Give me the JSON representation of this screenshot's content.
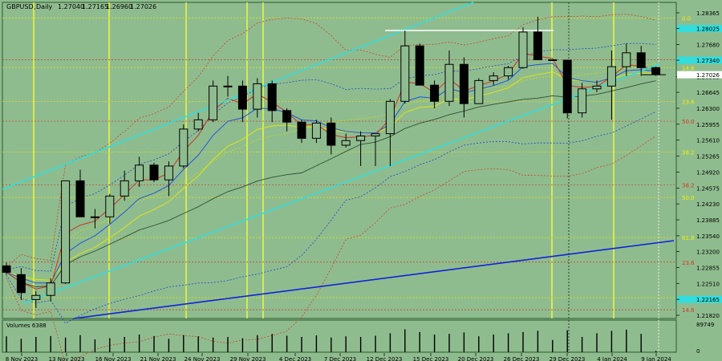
{
  "chart_data": {
    "type": "candlestick",
    "header": {
      "symbol": "GBPUSD",
      "timeframe": "Daily",
      "ohlc": [
        "1.27040",
        "1.27165",
        "1.26960",
        "1.27026"
      ]
    },
    "current_price": "1.27026",
    "volume_label": "Volumes 6388",
    "volume_axis": [
      "89749",
      "0"
    ],
    "y_ticks": [
      "1.28365",
      "1.28025",
      "1.27680",
      "1.27340",
      "1.26985",
      "1.26645",
      "1.26300",
      "1.25955",
      "1.25610",
      "1.25265",
      "1.24920",
      "1.24575",
      "1.24230",
      "1.23885",
      "1.23540",
      "1.23200",
      "1.22855",
      "1.22510",
      "1.22165",
      "1.21820"
    ],
    "highlighted_ticks": [
      "1.28025",
      "1.27340",
      "1.22165"
    ],
    "x_labels": [
      "8 Nov 2023",
      "13 Nov 2023",
      "16 Nov 2023",
      "21 Nov 2023",
      "24 Nov 2023",
      "29 Nov 2023",
      "4 Dec 2023",
      "7 Dec 2023",
      "12 Dec 2023",
      "15 Dec 2023",
      "20 Dec 2023",
      "26 Dec 2023",
      "29 Dec 2023",
      "4 Jan 2024",
      "9 Jan 2024"
    ],
    "fib_labels": [
      {
        "text": "0.0",
        "price": 1.2825,
        "color": "yellow"
      },
      {
        "text": "61.8",
        "price": 1.2735,
        "color": "red"
      },
      {
        "text": "14.6",
        "price": 1.2718,
        "color": "yellow"
      },
      {
        "text": "23.6",
        "price": 1.2645,
        "color": "yellow"
      },
      {
        "text": "50.0",
        "price": 1.2602,
        "color": "red"
      },
      {
        "text": "38.2",
        "price": 1.2535,
        "color": "yellow"
      },
      {
        "text": "38.2",
        "price": 1.2464,
        "color": "red"
      },
      {
        "text": "50.0",
        "price": 1.2437,
        "color": "yellow"
      },
      {
        "text": "61.8",
        "price": 1.235,
        "color": "yellow"
      },
      {
        "text": "23.6",
        "price": 1.2297,
        "color": "red"
      },
      {
        "text": "76.4",
        "price": 1.222,
        "color": "yellow"
      },
      {
        "text": "14.6",
        "price": 1.2194,
        "color": "red"
      }
    ],
    "ylim": [
      1.2165,
      1.2848
    ],
    "candles": [
      {
        "o": 1.2289,
        "h": 1.2296,
        "l": 1.227,
        "c": 1.2275
      },
      {
        "o": 1.227,
        "h": 1.2284,
        "l": 1.2215,
        "c": 1.2231
      },
      {
        "o": 1.2216,
        "h": 1.2234,
        "l": 1.2198,
        "c": 1.2225
      },
      {
        "o": 1.2225,
        "h": 1.2262,
        "l": 1.2212,
        "c": 1.2252
      },
      {
        "o": 1.2252,
        "h": 1.2473,
        "l": 1.225,
        "c": 1.2473
      },
      {
        "o": 1.2473,
        "h": 1.2497,
        "l": 1.2395,
        "c": 1.2395
      },
      {
        "o": 1.2395,
        "h": 1.2412,
        "l": 1.237,
        "c": 1.2395
      },
      {
        "o": 1.2395,
        "h": 1.2445,
        "l": 1.238,
        "c": 1.244
      },
      {
        "o": 1.244,
        "h": 1.2495,
        "l": 1.243,
        "c": 1.2473
      },
      {
        "o": 1.2473,
        "h": 1.2525,
        "l": 1.246,
        "c": 1.2507
      },
      {
        "o": 1.2507,
        "h": 1.2512,
        "l": 1.247,
        "c": 1.2475
      },
      {
        "o": 1.2475,
        "h": 1.2515,
        "l": 1.244,
        "c": 1.2505
      },
      {
        "o": 1.2505,
        "h": 1.2595,
        "l": 1.25,
        "c": 1.2585
      },
      {
        "o": 1.2585,
        "h": 1.262,
        "l": 1.258,
        "c": 1.2605
      },
      {
        "o": 1.2605,
        "h": 1.269,
        "l": 1.26,
        "c": 1.2678
      },
      {
        "o": 1.2678,
        "h": 1.27,
        "l": 1.2655,
        "c": 1.2678
      },
      {
        "o": 1.2678,
        "h": 1.269,
        "l": 1.26,
        "c": 1.2628
      },
      {
        "o": 1.2628,
        "h": 1.2695,
        "l": 1.261,
        "c": 1.2683
      },
      {
        "o": 1.2683,
        "h": 1.269,
        "l": 1.26,
        "c": 1.2625
      },
      {
        "o": 1.2625,
        "h": 1.263,
        "l": 1.258,
        "c": 1.26
      },
      {
        "o": 1.26,
        "h": 1.2605,
        "l": 1.2555,
        "c": 1.2565
      },
      {
        "o": 1.2565,
        "h": 1.2605,
        "l": 1.2555,
        "c": 1.2598
      },
      {
        "o": 1.2598,
        "h": 1.261,
        "l": 1.253,
        "c": 1.255
      },
      {
        "o": 1.255,
        "h": 1.2575,
        "l": 1.2545,
        "c": 1.256
      },
      {
        "o": 1.256,
        "h": 1.258,
        "l": 1.2505,
        "c": 1.257
      },
      {
        "o": 1.257,
        "h": 1.2575,
        "l": 1.2505,
        "c": 1.2575
      },
      {
        "o": 1.2575,
        "h": 1.265,
        "l": 1.2505,
        "c": 1.2645
      },
      {
        "o": 1.2645,
        "h": 1.2798,
        "l": 1.264,
        "c": 1.2765
      },
      {
        "o": 1.2765,
        "h": 1.277,
        "l": 1.268,
        "c": 1.268
      },
      {
        "o": 1.268,
        "h": 1.269,
        "l": 1.263,
        "c": 1.2645
      },
      {
        "o": 1.2645,
        "h": 1.2755,
        "l": 1.2635,
        "c": 1.2725
      },
      {
        "o": 1.2725,
        "h": 1.274,
        "l": 1.261,
        "c": 1.264
      },
      {
        "o": 1.264,
        "h": 1.2695,
        "l": 1.264,
        "c": 1.269
      },
      {
        "o": 1.269,
        "h": 1.2708,
        "l": 1.268,
        "c": 1.27
      },
      {
        "o": 1.27,
        "h": 1.2722,
        "l": 1.2692,
        "c": 1.2718
      },
      {
        "o": 1.2718,
        "h": 1.2805,
        "l": 1.2715,
        "c": 1.2795
      },
      {
        "o": 1.2795,
        "h": 1.2828,
        "l": 1.2735,
        "c": 1.2735
      },
      {
        "o": 1.2735,
        "h": 1.2736,
        "l": 1.2732,
        "c": 1.2734
      },
      {
        "o": 1.2734,
        "h": 1.2735,
        "l": 1.2608,
        "c": 1.262
      },
      {
        "o": 1.262,
        "h": 1.2685,
        "l": 1.261,
        "c": 1.2672
      },
      {
        "o": 1.2672,
        "h": 1.269,
        "l": 1.2665,
        "c": 1.2678
      },
      {
        "o": 1.2678,
        "h": 1.2755,
        "l": 1.2605,
        "c": 1.272
      },
      {
        "o": 1.272,
        "h": 1.277,
        "l": 1.27,
        "c": 1.275
      },
      {
        "o": 1.275,
        "h": 1.2765,
        "l": 1.27,
        "c": 1.2718
      },
      {
        "o": 1.2718,
        "h": 1.272,
        "l": 1.27,
        "c": 1.2703
      }
    ],
    "volumes": [
      52,
      44,
      50,
      53,
      48,
      56,
      42,
      46,
      50,
      58,
      53,
      44,
      56,
      52,
      48,
      50,
      46,
      56,
      60,
      54,
      50,
      55,
      48,
      52,
      50,
      54,
      62,
      75,
      66,
      58,
      60,
      65,
      52,
      58,
      62,
      66,
      70,
      40,
      72,
      50,
      62,
      70,
      74,
      60,
      4
    ]
  }
}
